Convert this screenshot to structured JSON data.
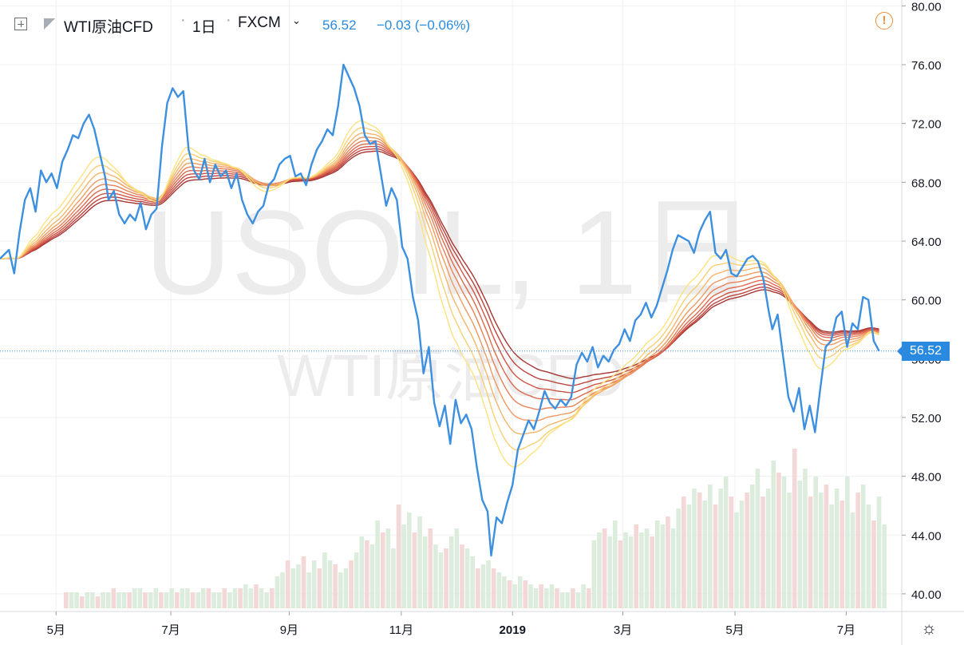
{
  "header": {
    "symbol": "WTI原油CFD",
    "interval": "1日",
    "exchange": "FXCM",
    "price": "56.52",
    "change": "−0.03 (−0.06%)",
    "price_tag": "56.52"
  },
  "watermark": {
    "line1": "USOIL, 1日",
    "line2": "WTI原油CFD"
  },
  "colors": {
    "price_line": "#3d8fe0",
    "ribbon": [
      "#fde27d",
      "#f9cf73",
      "#f5b56a",
      "#f09a60",
      "#e98157",
      "#de6a4e",
      "#cf5446",
      "#bd433d",
      "#a53632"
    ],
    "axis_text": "#131722",
    "grid": "#eef0f3",
    "vol_up": "#d8ebd9",
    "vol_down": "#f3d3d3"
  },
  "chart_data": {
    "type": "line",
    "title": "WTI原油CFD",
    "ylim": [
      38.8,
      80.4
    ],
    "y_ticks": [
      "80.00",
      "76.00",
      "72.00",
      "68.00",
      "64.00",
      "60.00",
      "56.00",
      "52.00",
      "48.00",
      "44.00",
      "40.00"
    ],
    "x_ticks": [
      {
        "label": "5月",
        "pos": 0.063
      },
      {
        "label": "7月",
        "pos": 0.192
      },
      {
        "label": "9月",
        "pos": 0.325
      },
      {
        "label": "11月",
        "pos": 0.451
      },
      {
        "label": "2019",
        "pos": 0.576
      },
      {
        "label": "3月",
        "pos": 0.7
      },
      {
        "label": "5月",
        "pos": 0.826
      },
      {
        "label": "7月",
        "pos": 0.951
      }
    ],
    "series": [
      {
        "name": "WTI原油CFD",
        "points": [
          [
            0.0,
            62.8
          ],
          [
            0.01,
            63.4
          ],
          [
            0.016,
            61.8
          ],
          [
            0.022,
            64.6
          ],
          [
            0.028,
            66.8
          ],
          [
            0.034,
            67.6
          ],
          [
            0.04,
            66.0
          ],
          [
            0.046,
            68.8
          ],
          [
            0.052,
            68.0
          ],
          [
            0.058,
            68.6
          ],
          [
            0.064,
            67.6
          ],
          [
            0.07,
            69.4
          ],
          [
            0.076,
            70.2
          ],
          [
            0.082,
            71.2
          ],
          [
            0.088,
            71.0
          ],
          [
            0.094,
            72.0
          ],
          [
            0.1,
            72.6
          ],
          [
            0.106,
            71.6
          ],
          [
            0.112,
            70.0
          ],
          [
            0.118,
            68.4
          ],
          [
            0.122,
            66.8
          ],
          [
            0.128,
            67.4
          ],
          [
            0.134,
            65.8
          ],
          [
            0.14,
            65.2
          ],
          [
            0.146,
            65.8
          ],
          [
            0.152,
            65.4
          ],
          [
            0.158,
            66.6
          ],
          [
            0.164,
            64.8
          ],
          [
            0.17,
            65.8
          ],
          [
            0.176,
            66.2
          ],
          [
            0.182,
            70.4
          ],
          [
            0.188,
            73.4
          ],
          [
            0.194,
            74.4
          ],
          [
            0.2,
            73.8
          ],
          [
            0.206,
            74.2
          ],
          [
            0.212,
            70.2
          ],
          [
            0.218,
            68.8
          ],
          [
            0.224,
            68.2
          ],
          [
            0.23,
            69.6
          ],
          [
            0.236,
            68.0
          ],
          [
            0.242,
            69.2
          ],
          [
            0.248,
            68.4
          ],
          [
            0.254,
            68.8
          ],
          [
            0.26,
            67.6
          ],
          [
            0.266,
            68.6
          ],
          [
            0.272,
            66.8
          ],
          [
            0.278,
            65.8
          ],
          [
            0.284,
            65.2
          ],
          [
            0.29,
            66.0
          ],
          [
            0.296,
            66.4
          ],
          [
            0.302,
            67.8
          ],
          [
            0.308,
            68.2
          ],
          [
            0.314,
            69.2
          ],
          [
            0.32,
            69.6
          ],
          [
            0.326,
            69.8
          ],
          [
            0.332,
            68.4
          ],
          [
            0.338,
            68.6
          ],
          [
            0.344,
            67.8
          ],
          [
            0.35,
            69.2
          ],
          [
            0.356,
            70.2
          ],
          [
            0.362,
            70.8
          ],
          [
            0.368,
            71.6
          ],
          [
            0.374,
            71.2
          ],
          [
            0.38,
            73.2
          ],
          [
            0.386,
            76.0
          ],
          [
            0.392,
            75.2
          ],
          [
            0.398,
            74.4
          ],
          [
            0.404,
            73.2
          ],
          [
            0.41,
            71.2
          ],
          [
            0.416,
            70.6
          ],
          [
            0.422,
            70.8
          ],
          [
            0.428,
            68.6
          ],
          [
            0.434,
            66.4
          ],
          [
            0.44,
            67.6
          ],
          [
            0.446,
            66.8
          ],
          [
            0.452,
            63.6
          ],
          [
            0.458,
            62.8
          ],
          [
            0.464,
            60.2
          ],
          [
            0.47,
            58.6
          ],
          [
            0.476,
            55.0
          ],
          [
            0.482,
            56.8
          ],
          [
            0.488,
            53.0
          ],
          [
            0.494,
            51.4
          ],
          [
            0.5,
            52.8
          ],
          [
            0.506,
            50.2
          ],
          [
            0.512,
            53.2
          ],
          [
            0.518,
            51.6
          ],
          [
            0.524,
            52.2
          ],
          [
            0.53,
            51.2
          ],
          [
            0.536,
            48.6
          ],
          [
            0.542,
            46.4
          ],
          [
            0.548,
            45.6
          ],
          [
            0.552,
            42.6
          ],
          [
            0.558,
            45.2
          ],
          [
            0.564,
            44.8
          ],
          [
            0.57,
            46.2
          ],
          [
            0.576,
            47.4
          ],
          [
            0.582,
            49.8
          ],
          [
            0.588,
            50.8
          ],
          [
            0.594,
            51.8
          ],
          [
            0.6,
            51.2
          ],
          [
            0.606,
            52.4
          ],
          [
            0.612,
            53.8
          ],
          [
            0.618,
            53.0
          ],
          [
            0.624,
            52.6
          ],
          [
            0.63,
            53.2
          ],
          [
            0.636,
            52.8
          ],
          [
            0.642,
            53.4
          ],
          [
            0.648,
            55.6
          ],
          [
            0.654,
            56.4
          ],
          [
            0.66,
            55.8
          ],
          [
            0.666,
            56.8
          ],
          [
            0.672,
            55.4
          ],
          [
            0.678,
            56.2
          ],
          [
            0.684,
            55.8
          ],
          [
            0.69,
            56.6
          ],
          [
            0.696,
            57.0
          ],
          [
            0.702,
            58.0
          ],
          [
            0.708,
            57.2
          ],
          [
            0.714,
            58.6
          ],
          [
            0.72,
            59.0
          ],
          [
            0.726,
            59.8
          ],
          [
            0.732,
            58.8
          ],
          [
            0.738,
            59.6
          ],
          [
            0.744,
            60.8
          ],
          [
            0.75,
            62.0
          ],
          [
            0.756,
            63.4
          ],
          [
            0.762,
            64.4
          ],
          [
            0.768,
            64.2
          ],
          [
            0.774,
            64.0
          ],
          [
            0.78,
            63.2
          ],
          [
            0.786,
            64.6
          ],
          [
            0.792,
            65.4
          ],
          [
            0.798,
            66.0
          ],
          [
            0.804,
            63.2
          ],
          [
            0.81,
            62.8
          ],
          [
            0.816,
            63.4
          ],
          [
            0.822,
            61.8
          ],
          [
            0.828,
            61.6
          ],
          [
            0.834,
            62.2
          ],
          [
            0.84,
            62.8
          ],
          [
            0.846,
            63.0
          ],
          [
            0.852,
            62.6
          ],
          [
            0.858,
            61.4
          ],
          [
            0.864,
            59.2
          ],
          [
            0.868,
            58.0
          ],
          [
            0.874,
            59.0
          ],
          [
            0.88,
            56.2
          ],
          [
            0.886,
            53.4
          ],
          [
            0.892,
            52.4
          ],
          [
            0.898,
            54.0
          ],
          [
            0.904,
            51.2
          ],
          [
            0.91,
            52.8
          ],
          [
            0.916,
            51.0
          ],
          [
            0.922,
            54.0
          ],
          [
            0.928,
            56.8
          ],
          [
            0.934,
            57.2
          ],
          [
            0.94,
            58.8
          ],
          [
            0.946,
            59.2
          ],
          [
            0.952,
            56.8
          ],
          [
            0.958,
            58.4
          ],
          [
            0.964,
            58.0
          ],
          [
            0.97,
            60.2
          ],
          [
            0.976,
            60.0
          ],
          [
            0.982,
            57.2
          ],
          [
            0.988,
            56.52
          ]
        ]
      }
    ],
    "ribbon_periods": [
      20,
      25,
      30,
      35,
      40,
      45,
      50,
      55,
      60
    ],
    "volume": [
      4,
      4,
      4,
      3,
      4,
      4,
      3,
      4,
      4,
      5,
      4,
      4,
      4,
      5,
      5,
      4,
      4,
      5,
      4,
      4,
      5,
      4,
      5,
      5,
      4,
      4,
      5,
      5,
      4,
      4,
      5,
      4,
      5,
      5,
      6,
      5,
      6,
      5,
      4,
      5,
      8,
      9,
      12,
      10,
      11,
      13,
      9,
      12,
      10,
      14,
      12,
      11,
      9,
      10,
      12,
      14,
      18,
      17,
      16,
      22,
      19,
      20,
      15,
      26,
      21,
      24,
      19,
      23,
      18,
      20,
      16,
      14,
      15,
      18,
      20,
      16,
      15,
      13,
      10,
      11,
      12,
      10,
      9,
      8,
      7,
      6,
      8,
      7,
      6,
      5,
      6,
      5,
      6,
      5,
      4,
      4,
      5,
      4,
      6,
      5,
      17,
      19,
      20,
      18,
      22,
      17,
      19,
      18,
      21,
      19,
      20,
      18,
      22,
      21,
      23,
      20,
      25,
      28,
      26,
      30,
      29,
      27,
      31,
      26,
      30,
      33,
      28,
      24,
      27,
      29,
      31,
      35,
      28,
      30,
      37,
      34,
      33,
      29,
      40,
      32,
      35,
      28,
      33,
      29,
      31,
      26,
      30,
      27,
      33,
      24,
      29,
      31,
      26,
      22,
      28,
      21
    ]
  }
}
